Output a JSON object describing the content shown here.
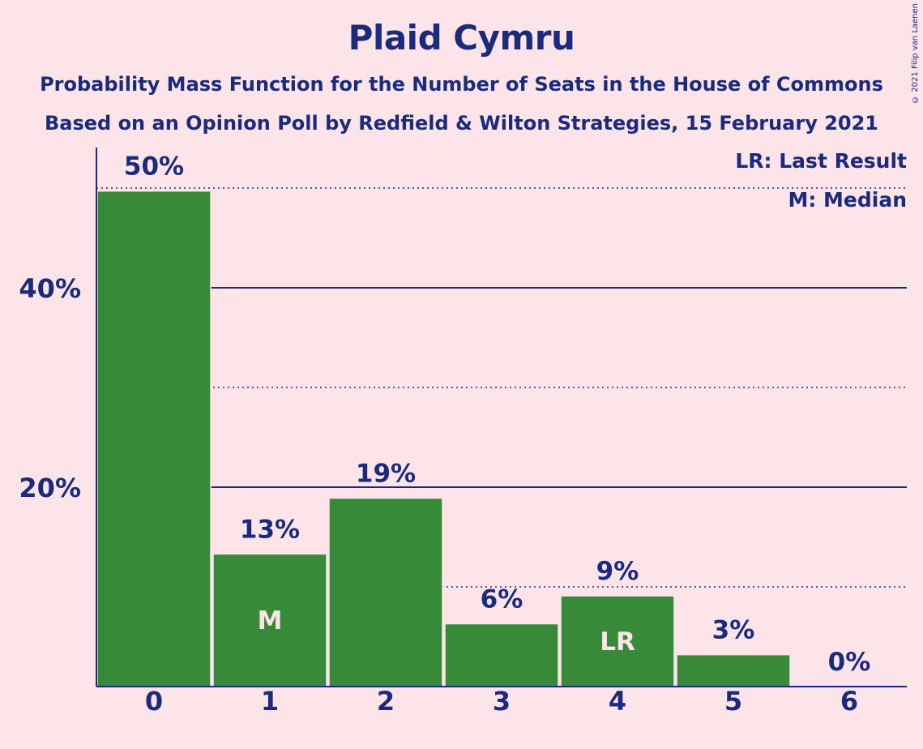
{
  "chart_data": {
    "type": "bar",
    "title": "Plaid Cymru",
    "subtitle": "Probability Mass Function for the Number of Seats in the House of Commons",
    "subtitle2": "Based on an Opinion Poll by Redfield & Wilton Strategies, 15 February 2021",
    "copyright": "© 2021 Filip van Laenen",
    "categories": [
      "0",
      "1",
      "2",
      "3",
      "4",
      "5",
      "6"
    ],
    "values": [
      49.7,
      13.3,
      18.9,
      6.3,
      9.1,
      3.2,
      0
    ],
    "value_labels": [
      "50%",
      "13%",
      "19%",
      "6%",
      "9%",
      "3%",
      "0%"
    ],
    "markers": {
      "1": "M",
      "4": "LR"
    },
    "yticks": [
      20,
      40
    ],
    "ytick_labels": [
      "20%",
      "40%"
    ],
    "ylim": [
      0,
      54
    ],
    "gridlines_solid": [
      20,
      40
    ],
    "gridlines_dotted": [
      10,
      30,
      50
    ],
    "legend": [
      "LR: Last Result",
      "M: Median"
    ],
    "legend_position": "top-right",
    "colors": {
      "bar": "#368a38",
      "text": "#1a2a7c",
      "background": "#fce4e8"
    }
  }
}
